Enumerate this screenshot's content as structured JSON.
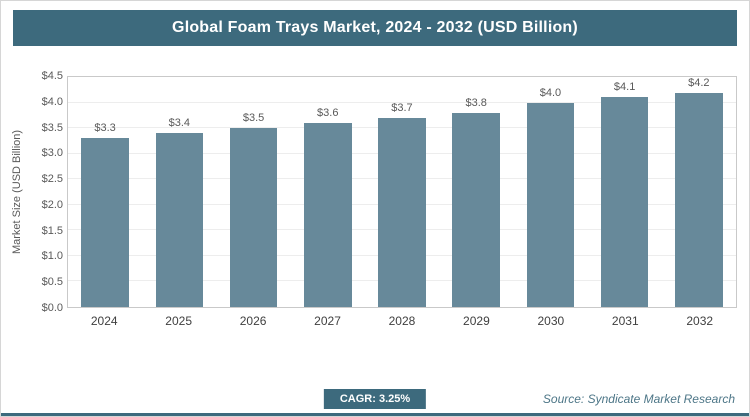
{
  "header": {
    "title": "Global Foam Trays Market, 2024 - 2032 (USD Billion)"
  },
  "chart_data": {
    "type": "bar",
    "title": "Global Foam Trays Market, 2024 - 2032 (USD Billion)",
    "categories": [
      "2024",
      "2025",
      "2026",
      "2027",
      "2028",
      "2029",
      "2030",
      "2031",
      "2032"
    ],
    "values": [
      3.3,
      3.4,
      3.5,
      3.6,
      3.7,
      3.8,
      4.0,
      4.1,
      4.2
    ],
    "value_labels": [
      "$3.3",
      "$3.4",
      "$3.5",
      "$3.6",
      "$3.7",
      "$3.8",
      "$4.0",
      "$4.1",
      "$4.2"
    ],
    "xlabel": "",
    "ylabel": "Market Size (USD Billion)",
    "ylim": [
      0,
      4.5
    ],
    "ytick_step": 0.5,
    "ytick_labels": [
      "$0.0",
      "$0.5",
      "$1.0",
      "$1.5",
      "$2.0",
      "$2.5",
      "$3.0",
      "$3.5",
      "$4.0",
      "$4.5"
    ],
    "grid": true,
    "legend": "none",
    "bar_color": "#67899a"
  },
  "footer": {
    "cagr_label": "CAGR: 3.25%",
    "source": "Source: Syndicate Market Research"
  },
  "colors": {
    "accent": "#3d6a7d",
    "bar": "#67899a",
    "tick_text": "#595959"
  }
}
